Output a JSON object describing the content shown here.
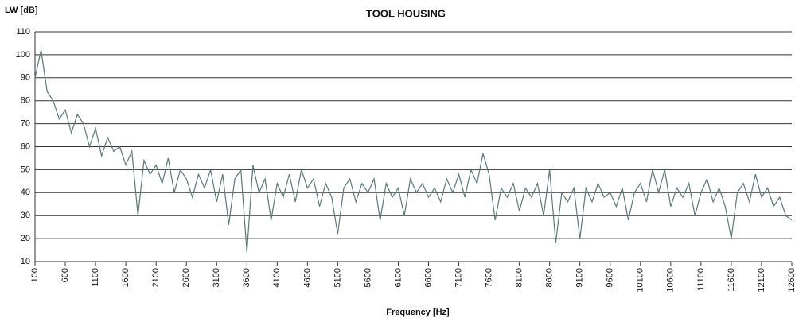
{
  "chart_data": {
    "type": "line",
    "title": "TOOL HOUSING",
    "y_label": "LW [dB]",
    "x_label": "Frequency [Hz]",
    "x": [
      100,
      200,
      300,
      400,
      500,
      600,
      700,
      800,
      900,
      1000,
      1100,
      1200,
      1300,
      1400,
      1500,
      1600,
      1700,
      1800,
      1900,
      2000,
      2100,
      2200,
      2300,
      2400,
      2500,
      2600,
      2700,
      2800,
      2900,
      3000,
      3100,
      3200,
      3300,
      3400,
      3500,
      3600,
      3700,
      3800,
      3900,
      4000,
      4100,
      4200,
      4300,
      4400,
      4500,
      4600,
      4700,
      4800,
      4900,
      5000,
      5100,
      5200,
      5300,
      5400,
      5500,
      5600,
      5700,
      5800,
      5900,
      6000,
      6100,
      6200,
      6300,
      6400,
      6500,
      6600,
      6700,
      6800,
      6900,
      7000,
      7100,
      7200,
      7300,
      7400,
      7500,
      7600,
      7700,
      7800,
      7900,
      8000,
      8100,
      8200,
      8300,
      8400,
      8500,
      8600,
      8700,
      8800,
      8900,
      9000,
      9100,
      9200,
      9300,
      9400,
      9500,
      9600,
      9700,
      9800,
      9900,
      10000,
      10100,
      10200,
      10300,
      10400,
      10500,
      10600,
      10700,
      10800,
      10900,
      11000,
      11100,
      11200,
      11300,
      11400,
      11500,
      11600,
      11700,
      11800,
      11900,
      12000,
      12100,
      12200,
      12300,
      12400,
      12500,
      12600
    ],
    "series": [
      {
        "name": "LW",
        "color": "#587a77",
        "values": [
          90,
          102,
          84,
          80,
          72,
          76,
          66,
          74,
          70,
          60,
          68,
          56,
          64,
          58,
          60,
          52,
          58,
          30,
          54,
          48,
          52,
          44,
          55,
          40,
          50,
          46,
          38,
          48,
          42,
          50,
          36,
          48,
          26,
          46,
          50,
          14,
          52,
          40,
          46,
          28,
          44,
          38,
          48,
          36,
          50,
          42,
          46,
          34,
          44,
          38,
          22,
          42,
          46,
          36,
          44,
          40,
          46,
          28,
          44,
          38,
          42,
          30,
          46,
          40,
          44,
          38,
          42,
          36,
          46,
          40,
          48,
          38,
          50,
          44,
          57,
          48,
          28,
          42,
          38,
          44,
          32,
          42,
          38,
          44,
          30,
          50,
          18,
          40,
          36,
          42,
          20,
          42,
          36,
          44,
          38,
          40,
          34,
          42,
          28,
          40,
          44,
          36,
          50,
          40,
          50,
          34,
          42,
          38,
          44,
          30,
          40,
          46,
          36,
          42,
          34,
          20,
          40,
          44,
          36,
          48,
          38,
          42,
          34,
          38,
          30,
          28
        ]
      }
    ],
    "xlim": [
      100,
      12600
    ],
    "ylim": [
      10,
      110
    ],
    "xticks": [
      100,
      600,
      1100,
      1600,
      2100,
      2600,
      3100,
      3600,
      4100,
      4600,
      5100,
      5600,
      6100,
      6600,
      7100,
      7600,
      8100,
      8600,
      9100,
      9600,
      10100,
      10600,
      11100,
      11600,
      12100,
      12600
    ],
    "yticks": [
      10,
      20,
      30,
      40,
      50,
      60,
      70,
      80,
      90,
      100,
      110
    ],
    "grid": true
  }
}
